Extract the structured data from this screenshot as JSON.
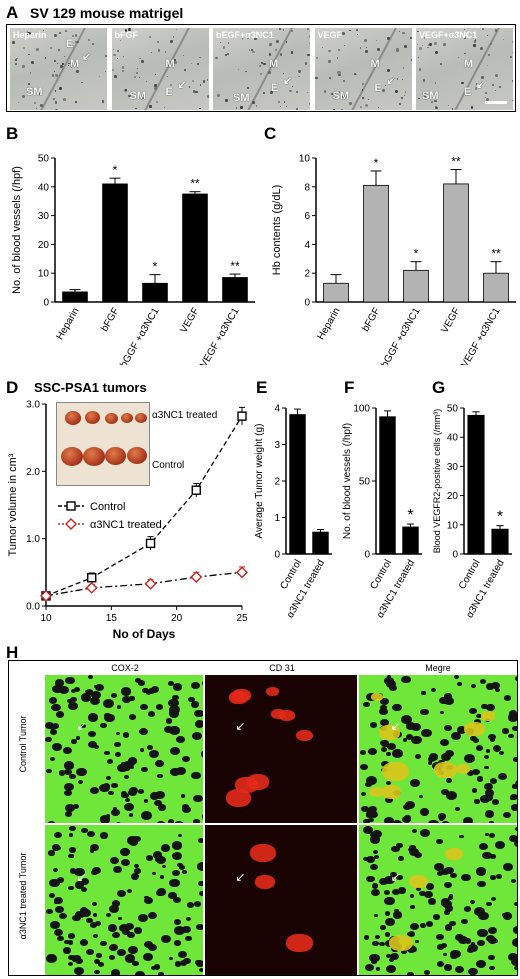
{
  "panelA": {
    "letter": "A",
    "title": "SV 129 mouse matrigel",
    "images": [
      {
        "label": "Heparin",
        "marks": [
          "E",
          "M",
          "SM"
        ]
      },
      {
        "label": "bFGF",
        "marks": [
          "M",
          "E",
          "SM"
        ]
      },
      {
        "label": "bEGF+α3NC1",
        "marks": [
          "M",
          "E",
          "SM"
        ]
      },
      {
        "label": "VEGF",
        "marks": [
          "M",
          "E",
          "SM"
        ]
      },
      {
        "label": "VEGF+α3NC1",
        "marks": [
          "M",
          "E",
          "SM"
        ]
      }
    ]
  },
  "panelD_photo": {
    "treated_label": "α3NC1 treated",
    "control_label": "Control"
  },
  "panelH": {
    "letter": "H",
    "col_headers": [
      "COX-2",
      "CD 31",
      "Megre"
    ],
    "row_labels": [
      "Control Tumor",
      "α3NC1 treated Tumor"
    ]
  },
  "chart_data": [
    {
      "id": "B",
      "letter": "B",
      "type": "bar",
      "categories": [
        "Heparin",
        "bFGF",
        "bGGF +α3NC1",
        "VEGF",
        "VEGF +α3NC1"
      ],
      "values": [
        3.5,
        41,
        6.5,
        37.5,
        8.5
      ],
      "errors": [
        0.8,
        2,
        3,
        0.8,
        1.2
      ],
      "annotations": [
        "",
        "*",
        "*",
        "**",
        "**"
      ],
      "ylabel": "No. of blood vessels (/hpf)",
      "ylim": [
        0,
        50
      ],
      "yticks": [
        0,
        10,
        20,
        30,
        40,
        50
      ],
      "color": "#000000"
    },
    {
      "id": "C",
      "letter": "C",
      "type": "bar",
      "categories": [
        "Heparin",
        "bFGF",
        "bGGF +α3NC1",
        "VEGF",
        "VEGF +α3NC1"
      ],
      "values": [
        1.3,
        8.1,
        2.2,
        8.2,
        2.0
      ],
      "errors": [
        0.6,
        1.0,
        0.6,
        1.0,
        0.8
      ],
      "annotations": [
        "",
        "*",
        "*",
        "**",
        "**"
      ],
      "ylabel": "Hb contents (g/dL)",
      "ylim": [
        0,
        10
      ],
      "yticks": [
        0,
        2,
        4,
        6,
        8,
        10
      ],
      "color": "#b3b3b3"
    },
    {
      "id": "D",
      "letter": "D",
      "type": "line",
      "title": "SSC-PSA1 tumors",
      "xlabel": "No of Days",
      "ylabel": "Tumor volume in cm³",
      "xlim": [
        10,
        25
      ],
      "xticks": [
        10,
        15,
        20,
        25
      ],
      "ylim": [
        0,
        3.0
      ],
      "yticks": [
        0,
        1.0,
        2.0,
        3.0
      ],
      "x": [
        10,
        13.5,
        18,
        21.5,
        25
      ],
      "series": [
        {
          "name": "Control",
          "values": [
            0.15,
            0.42,
            0.93,
            1.72,
            2.82
          ],
          "errors": [
            0.04,
            0.07,
            0.1,
            0.1,
            0.13
          ],
          "color": "#000000",
          "marker": "square"
        },
        {
          "name": "α3NC1 treated",
          "values": [
            0.15,
            0.27,
            0.33,
            0.43,
            0.5
          ],
          "errors": [
            0.03,
            0.05,
            0.06,
            0.07,
            0.08
          ],
          "color": "#cc2222",
          "marker": "diamond"
        }
      ]
    },
    {
      "id": "E",
      "letter": "E",
      "type": "bar",
      "categories": [
        "Control",
        "α3NC1 treated"
      ],
      "values": [
        3.82,
        0.6
      ],
      "errors": [
        0.15,
        0.07
      ],
      "annotations": [
        "",
        ""
      ],
      "ylabel": "Average Tumor weight (g)",
      "ylim": [
        0,
        4
      ],
      "yticks": [
        0,
        1,
        2,
        3,
        4
      ],
      "color": "#000000"
    },
    {
      "id": "F",
      "letter": "F",
      "type": "bar",
      "categories": [
        "Control",
        "α3NC1 treated"
      ],
      "values": [
        94,
        18.5
      ],
      "errors": [
        4,
        2
      ],
      "annotations": [
        "",
        "*"
      ],
      "ylabel": "No. of blood vessels (/hpf)",
      "ylim": [
        0,
        100
      ],
      "yticks": [
        0,
        50,
        100
      ],
      "color": "#000000"
    },
    {
      "id": "G",
      "letter": "G",
      "type": "bar",
      "categories": [
        "Control",
        "α3NC1 treated"
      ],
      "values": [
        47.5,
        8.5
      ],
      "errors": [
        1.2,
        1.2
      ],
      "annotations": [
        "",
        "*"
      ],
      "ylabel": "Blood VEGFR2-positive cells (/mm³)",
      "ylim": [
        0,
        50
      ],
      "yticks": [
        0,
        10,
        20,
        30,
        40,
        50
      ],
      "color": "#000000"
    }
  ]
}
